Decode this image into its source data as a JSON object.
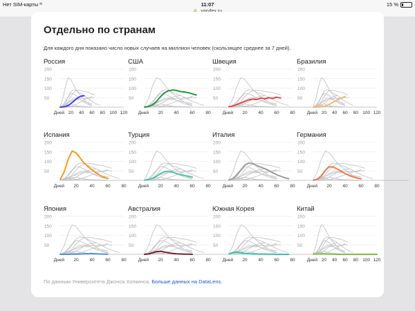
{
  "status_bar": {
    "carrier": "Нет SIM-карты",
    "wifi_icon": "wifi-icon",
    "time": "11:07",
    "battery": "15 %",
    "battery_level": 0.15
  },
  "url_bar": {
    "lock_icon": "lock-icon",
    "url": "yandex.ru"
  },
  "section": {
    "title": "Отдельно по странам",
    "description": "Для каждого дня показано число новых случаев на миллион человек (скользящее среднее за 7 дней)."
  },
  "footer": {
    "source_text": "По данным Университета Джонса Хопкинса.",
    "link_text": "Больше данных на DataLens."
  },
  "colors": {
    "gray_series": "#c4c4c8",
    "grid": "#ececec",
    "axis_text": "#999999"
  },
  "chart_data": [
    {
      "type": "line",
      "title": "Россия",
      "color": "#3b3ff0",
      "x_tick_labels": [
        "Дней",
        "20",
        "40",
        "60",
        "80",
        "100",
        "120"
      ],
      "y_tick_labels": [
        "50",
        "100",
        "150",
        "200"
      ],
      "xlim": [
        0,
        120
      ],
      "ylim": [
        0,
        200
      ],
      "x": [
        0,
        5,
        10,
        15,
        20,
        25,
        30,
        35,
        40,
        45
      ],
      "y": [
        0,
        1,
        3,
        8,
        18,
        30,
        42,
        52,
        58,
        60
      ]
    },
    {
      "type": "line",
      "title": "США",
      "color": "#1a9a3c",
      "x_tick_labels": [
        "Дней",
        "20",
        "40",
        "60",
        "80"
      ],
      "y_tick_labels": [
        "50",
        "100",
        "150",
        "200"
      ],
      "xlim": [
        0,
        80
      ],
      "ylim": [
        0,
        200
      ],
      "x": [
        0,
        5,
        10,
        15,
        20,
        25,
        30,
        35,
        40,
        45,
        50,
        55,
        60,
        65
      ],
      "y": [
        0,
        3,
        12,
        30,
        55,
        75,
        86,
        90,
        88,
        82,
        80,
        76,
        70,
        64
      ]
    },
    {
      "type": "line",
      "title": "Швеция",
      "color": "#ef4444",
      "x_tick_labels": [
        "Дней",
        "20",
        "40",
        "60",
        "80"
      ],
      "y_tick_labels": [
        "50",
        "100",
        "150",
        "200"
      ],
      "xlim": [
        0,
        80
      ],
      "ylim": [
        0,
        200
      ],
      "x": [
        0,
        5,
        10,
        15,
        20,
        25,
        30,
        35,
        40,
        45,
        50,
        55,
        60,
        65
      ],
      "y": [
        2,
        6,
        14,
        22,
        30,
        38,
        42,
        40,
        48,
        44,
        50,
        46,
        52,
        48
      ]
    },
    {
      "type": "line",
      "title": "Бразилия",
      "color": "#f2b973",
      "x_tick_labels": [
        "Дней",
        "20",
        "40",
        "60",
        "80",
        "100",
        "120"
      ],
      "y_tick_labels": [
        "50",
        "100",
        "150",
        "200"
      ],
      "xlim": [
        0,
        120
      ],
      "ylim": [
        0,
        200
      ],
      "x": [
        0,
        5,
        10,
        15,
        20,
        25,
        30,
        35,
        40,
        45,
        50,
        55,
        60
      ],
      "y": [
        0,
        0,
        1,
        2,
        4,
        8,
        14,
        22,
        30,
        38,
        44,
        50,
        56
      ]
    },
    {
      "type": "line",
      "title": "Испания",
      "color": "#f59a23",
      "x_tick_labels": [
        "Дней",
        "20",
        "40",
        "60",
        "80"
      ],
      "y_tick_labels": [
        "50",
        "100",
        "150",
        "200"
      ],
      "xlim": [
        0,
        80
      ],
      "ylim": [
        0,
        200
      ],
      "x": [
        0,
        5,
        10,
        15,
        20,
        25,
        30,
        35,
        40,
        45,
        50,
        55,
        60
      ],
      "y": [
        5,
        45,
        110,
        155,
        145,
        118,
        92,
        72,
        56,
        40,
        26,
        16,
        10
      ]
    },
    {
      "type": "line",
      "title": "Турция",
      "color": "#4cc7a6",
      "x_tick_labels": [
        "Дней",
        "20",
        "40",
        "60",
        "80"
      ],
      "y_tick_labels": [
        "50",
        "100",
        "150",
        "200"
      ],
      "xlim": [
        0,
        80
      ],
      "ylim": [
        0,
        200
      ],
      "x": [
        0,
        5,
        10,
        15,
        20,
        25,
        30,
        35,
        40,
        45,
        50,
        55,
        60
      ],
      "y": [
        1,
        4,
        10,
        22,
        36,
        46,
        48,
        44,
        36,
        30,
        26,
        22,
        18
      ]
    },
    {
      "type": "line",
      "title": "Италия",
      "color": "#9b9b9b",
      "x_tick_labels": [
        "Дней",
        "20",
        "40",
        "60",
        "80"
      ],
      "y_tick_labels": [
        "50",
        "100",
        "150",
        "200"
      ],
      "xlim": [
        0,
        80
      ],
      "ylim": [
        0,
        200
      ],
      "x": [
        0,
        5,
        10,
        15,
        20,
        25,
        30,
        35,
        40,
        45,
        50,
        55,
        60,
        65,
        70,
        75
      ],
      "y": [
        2,
        10,
        30,
        55,
        80,
        92,
        88,
        78,
        70,
        62,
        52,
        40,
        30,
        22,
        14,
        9
      ]
    },
    {
      "type": "line",
      "title": "Германия",
      "color": "#f07a4a",
      "x_tick_labels": [
        "Дней",
        "20",
        "40",
        "60",
        "80"
      ],
      "y_tick_labels": [
        "50",
        "100",
        "150",
        "200"
      ],
      "xlim": [
        0,
        80
      ],
      "ylim": [
        0,
        200
      ],
      "x": [
        0,
        5,
        10,
        15,
        20,
        25,
        30,
        35,
        40,
        45,
        50,
        55,
        60
      ],
      "y": [
        1,
        6,
        22,
        52,
        72,
        70,
        60,
        48,
        36,
        26,
        18,
        12,
        8
      ]
    },
    {
      "type": "line",
      "title": "Япония",
      "color": "#4a90d9",
      "x_tick_labels": [
        "Дней",
        "20",
        "40",
        "60",
        "80"
      ],
      "y_tick_labels": [
        "50",
        "100",
        "150",
        "200"
      ],
      "xlim": [
        0,
        80
      ],
      "ylim": [
        0,
        200
      ],
      "x": [
        0,
        5,
        10,
        15,
        20,
        25,
        30,
        35,
        40,
        45,
        50,
        55,
        60
      ],
      "y": [
        0,
        0,
        0,
        1,
        1,
        2,
        3,
        3,
        4,
        3,
        2,
        1,
        1
      ]
    },
    {
      "type": "line",
      "title": "Австралия",
      "color": "#7a1f2a",
      "x_tick_labels": [
        "Дней",
        "20",
        "40",
        "60",
        "80"
      ],
      "y_tick_labels": [
        "50",
        "100",
        "150",
        "200"
      ],
      "xlim": [
        0,
        80
      ],
      "ylim": [
        0,
        200
      ],
      "x": [
        0,
        5,
        10,
        15,
        20,
        25,
        30,
        35,
        40,
        45,
        50,
        55,
        60
      ],
      "y": [
        0,
        2,
        8,
        14,
        16,
        12,
        8,
        5,
        3,
        2,
        1,
        1,
        0
      ]
    },
    {
      "type": "line",
      "title": "Южная Корея",
      "color": "#30c3a8",
      "x_tick_labels": [
        "Дней",
        "20",
        "40",
        "60",
        "80"
      ],
      "y_tick_labels": [
        "50",
        "100",
        "150",
        "200"
      ],
      "xlim": [
        0,
        80
      ],
      "ylim": [
        0,
        200
      ],
      "x": [
        0,
        5,
        10,
        15,
        20,
        25,
        30,
        35,
        40,
        45,
        50,
        55,
        60,
        65,
        70,
        75
      ],
      "y": [
        2,
        10,
        12,
        8,
        5,
        3,
        2,
        2,
        1,
        1,
        1,
        1,
        0,
        0,
        0,
        0
      ]
    },
    {
      "type": "line",
      "title": "Китай",
      "color": "#7dbd3a",
      "x_tick_labels": [
        "Дней",
        "20",
        "40",
        "60",
        "80",
        "100",
        "120"
      ],
      "y_tick_labels": [
        "50",
        "100",
        "150",
        "200"
      ],
      "xlim": [
        0,
        120
      ],
      "ylim": [
        0,
        200
      ],
      "x": [
        0,
        10,
        20,
        30,
        40,
        50,
        60,
        70,
        80,
        90,
        100,
        110,
        120
      ],
      "y": [
        1,
        2,
        2,
        1,
        1,
        0,
        0,
        0,
        0,
        0,
        0,
        0,
        0
      ]
    }
  ]
}
